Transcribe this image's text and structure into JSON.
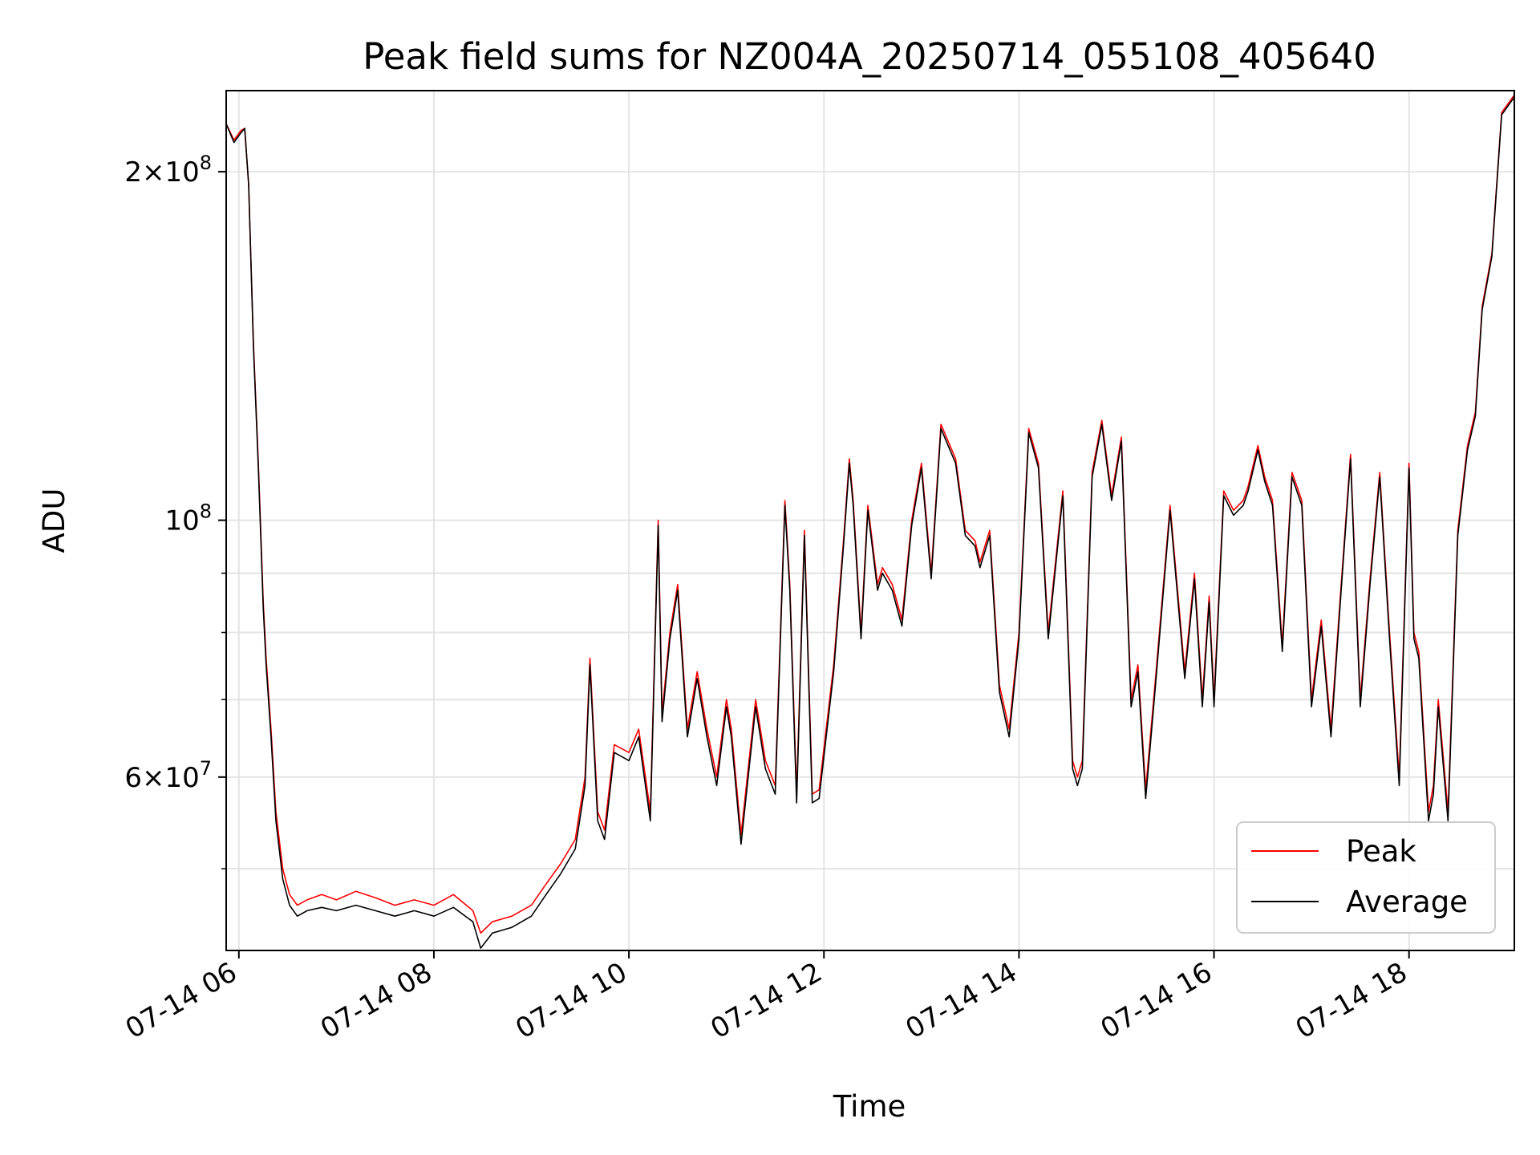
{
  "chart_data": {
    "type": "line",
    "title": "Peak field sums for NZ004A_20250714_055108_405640",
    "xlabel": "Time",
    "ylabel": "ADU",
    "x_axis": {
      "kind": "time",
      "range_hours": [
        5.87,
        19.08
      ],
      "ticks": [
        {
          "value": 6,
          "label": "07-14 06"
        },
        {
          "value": 8,
          "label": "07-14 08"
        },
        {
          "value": 10,
          "label": "07-14 10"
        },
        {
          "value": 12,
          "label": "07-14 12"
        },
        {
          "value": 14,
          "label": "07-14 14"
        },
        {
          "value": 16,
          "label": "07-14 16"
        },
        {
          "value": 18,
          "label": "07-14 18"
        }
      ]
    },
    "y_axis": {
      "scale": "log",
      "range": [
        42500000,
        235000000
      ],
      "major_ticks": [
        {
          "value": 60000000,
          "mantissa": "6",
          "exp": "7"
        },
        {
          "value": 100000000,
          "mantissa": "",
          "exp": "8"
        },
        {
          "value": 200000000,
          "mantissa": "2",
          "exp": "8"
        }
      ],
      "minor_ticks": [
        50000000,
        70000000,
        80000000,
        90000000
      ]
    },
    "grid": true,
    "legend": {
      "position": "lower-right",
      "entries": [
        "Peak",
        "Average"
      ]
    },
    "x_hours": [
      5.87,
      5.95,
      6.02,
      6.06,
      6.1,
      6.15,
      6.2,
      6.25,
      6.28,
      6.33,
      6.38,
      6.45,
      6.52,
      6.6,
      6.7,
      6.85,
      7.0,
      7.2,
      7.4,
      7.6,
      7.8,
      8.0,
      8.2,
      8.4,
      8.48,
      8.6,
      8.8,
      9.0,
      9.15,
      9.3,
      9.45,
      9.55,
      9.6,
      9.68,
      9.75,
      9.85,
      10.0,
      10.1,
      10.22,
      10.3,
      10.34,
      10.42,
      10.5,
      10.6,
      10.7,
      10.8,
      10.9,
      11.0,
      11.05,
      11.15,
      11.3,
      11.4,
      11.5,
      11.6,
      11.65,
      11.72,
      11.8,
      11.88,
      11.95,
      12.1,
      12.2,
      12.26,
      12.3,
      12.38,
      12.45,
      12.55,
      12.6,
      12.7,
      12.8,
      12.9,
      13.0,
      13.1,
      13.2,
      13.35,
      13.45,
      13.55,
      13.6,
      13.7,
      13.8,
      13.9,
      14.0,
      14.1,
      14.2,
      14.3,
      14.45,
      14.55,
      14.6,
      14.65,
      14.75,
      14.85,
      14.95,
      15.05,
      15.15,
      15.22,
      15.3,
      15.4,
      15.55,
      15.7,
      15.8,
      15.88,
      15.95,
      16.0,
      16.1,
      16.2,
      16.3,
      16.35,
      16.45,
      16.52,
      16.6,
      16.7,
      16.8,
      16.9,
      17.0,
      17.1,
      17.2,
      17.3,
      17.4,
      17.5,
      17.6,
      17.7,
      17.8,
      17.9,
      18.0,
      18.05,
      18.1,
      18.2,
      18.25,
      18.3,
      18.4,
      18.5,
      18.6,
      18.68,
      18.75,
      18.85,
      18.95,
      19.08
    ],
    "series": [
      {
        "name": "Peak",
        "color": "#ff0000",
        "values": [
          220000000,
          213000000,
          217000000,
          218000000,
          195000000,
          142000000,
          112000000,
          85000000,
          76000000,
          66000000,
          56000000,
          50000000,
          47500000,
          46500000,
          47000000,
          47500000,
          47000000,
          47800000,
          47200000,
          46500000,
          47000000,
          46500000,
          47500000,
          46000000,
          44000000,
          45000000,
          45500000,
          46500000,
          48500000,
          50500000,
          53000000,
          60000000,
          76000000,
          56000000,
          54000000,
          64000000,
          63000000,
          66000000,
          56000000,
          100000000,
          68000000,
          80000000,
          88000000,
          66000000,
          74000000,
          66000000,
          60000000,
          70000000,
          66000000,
          53500000,
          70000000,
          62000000,
          59000000,
          104000000,
          88000000,
          58000000,
          98000000,
          58000000,
          58500000,
          75000000,
          96000000,
          113000000,
          104000000,
          80000000,
          103000000,
          88000000,
          91000000,
          88000000,
          82000000,
          100000000,
          112000000,
          90000000,
          121000000,
          113000000,
          98000000,
          96000000,
          92000000,
          98000000,
          72000000,
          66000000,
          80000000,
          120000000,
          112000000,
          80000000,
          106000000,
          62000000,
          60000000,
          62000000,
          110000000,
          122000000,
          105000000,
          118000000,
          70000000,
          75000000,
          58500000,
          73000000,
          103000000,
          74000000,
          90000000,
          70000000,
          86000000,
          70000000,
          106000000,
          102000000,
          104000000,
          107000000,
          116000000,
          109000000,
          104000000,
          78000000,
          110000000,
          104000000,
          70000000,
          82000000,
          66000000,
          87000000,
          114000000,
          70000000,
          89000000,
          110000000,
          80000000,
          60000000,
          112000000,
          80000000,
          77000000,
          56000000,
          59000000,
          70000000,
          56000000,
          98000000,
          116000000,
          124000000,
          153000000,
          170000000,
          225000000,
          233000000
        ]
      },
      {
        "name": "Average",
        "color": "#000000",
        "values": [
          220000000,
          212000000,
          216000000,
          218000000,
          195000000,
          141000000,
          111000000,
          84000000,
          75000000,
          65000000,
          55000000,
          49000000,
          46500000,
          45500000,
          46000000,
          46300000,
          46000000,
          46500000,
          46000000,
          45500000,
          46000000,
          45500000,
          46300000,
          45000000,
          42700000,
          44000000,
          44500000,
          45500000,
          47500000,
          49500000,
          52000000,
          59000000,
          75000000,
          55000000,
          53000000,
          63000000,
          62000000,
          65000000,
          55000000,
          99000000,
          67000000,
          79000000,
          87000000,
          65000000,
          73000000,
          65000000,
          59000000,
          69000000,
          65000000,
          52500000,
          69000000,
          61000000,
          58000000,
          103000000,
          87000000,
          57000000,
          97000000,
          57000000,
          57500000,
          74000000,
          95000000,
          112000000,
          103000000,
          79000000,
          102000000,
          87000000,
          90000000,
          87000000,
          81000000,
          99000000,
          111000000,
          89000000,
          120000000,
          112000000,
          97000000,
          95000000,
          91000000,
          97000000,
          71000000,
          65000000,
          79000000,
          119000000,
          111000000,
          79000000,
          105000000,
          61000000,
          59000000,
          61000000,
          109000000,
          121000000,
          104000000,
          117000000,
          69000000,
          74000000,
          57500000,
          72000000,
          102000000,
          73000000,
          89000000,
          69000000,
          85000000,
          69000000,
          105000000,
          101000000,
          103000000,
          106000000,
          115000000,
          108000000,
          103000000,
          77000000,
          109000000,
          103000000,
          69000000,
          81000000,
          65000000,
          86000000,
          113000000,
          69000000,
          88000000,
          109000000,
          79000000,
          59000000,
          111000000,
          79000000,
          76000000,
          55000000,
          58000000,
          69000000,
          55000000,
          97000000,
          115000000,
          123000000,
          152000000,
          169000000,
          224000000,
          232000000
        ]
      }
    ]
  }
}
